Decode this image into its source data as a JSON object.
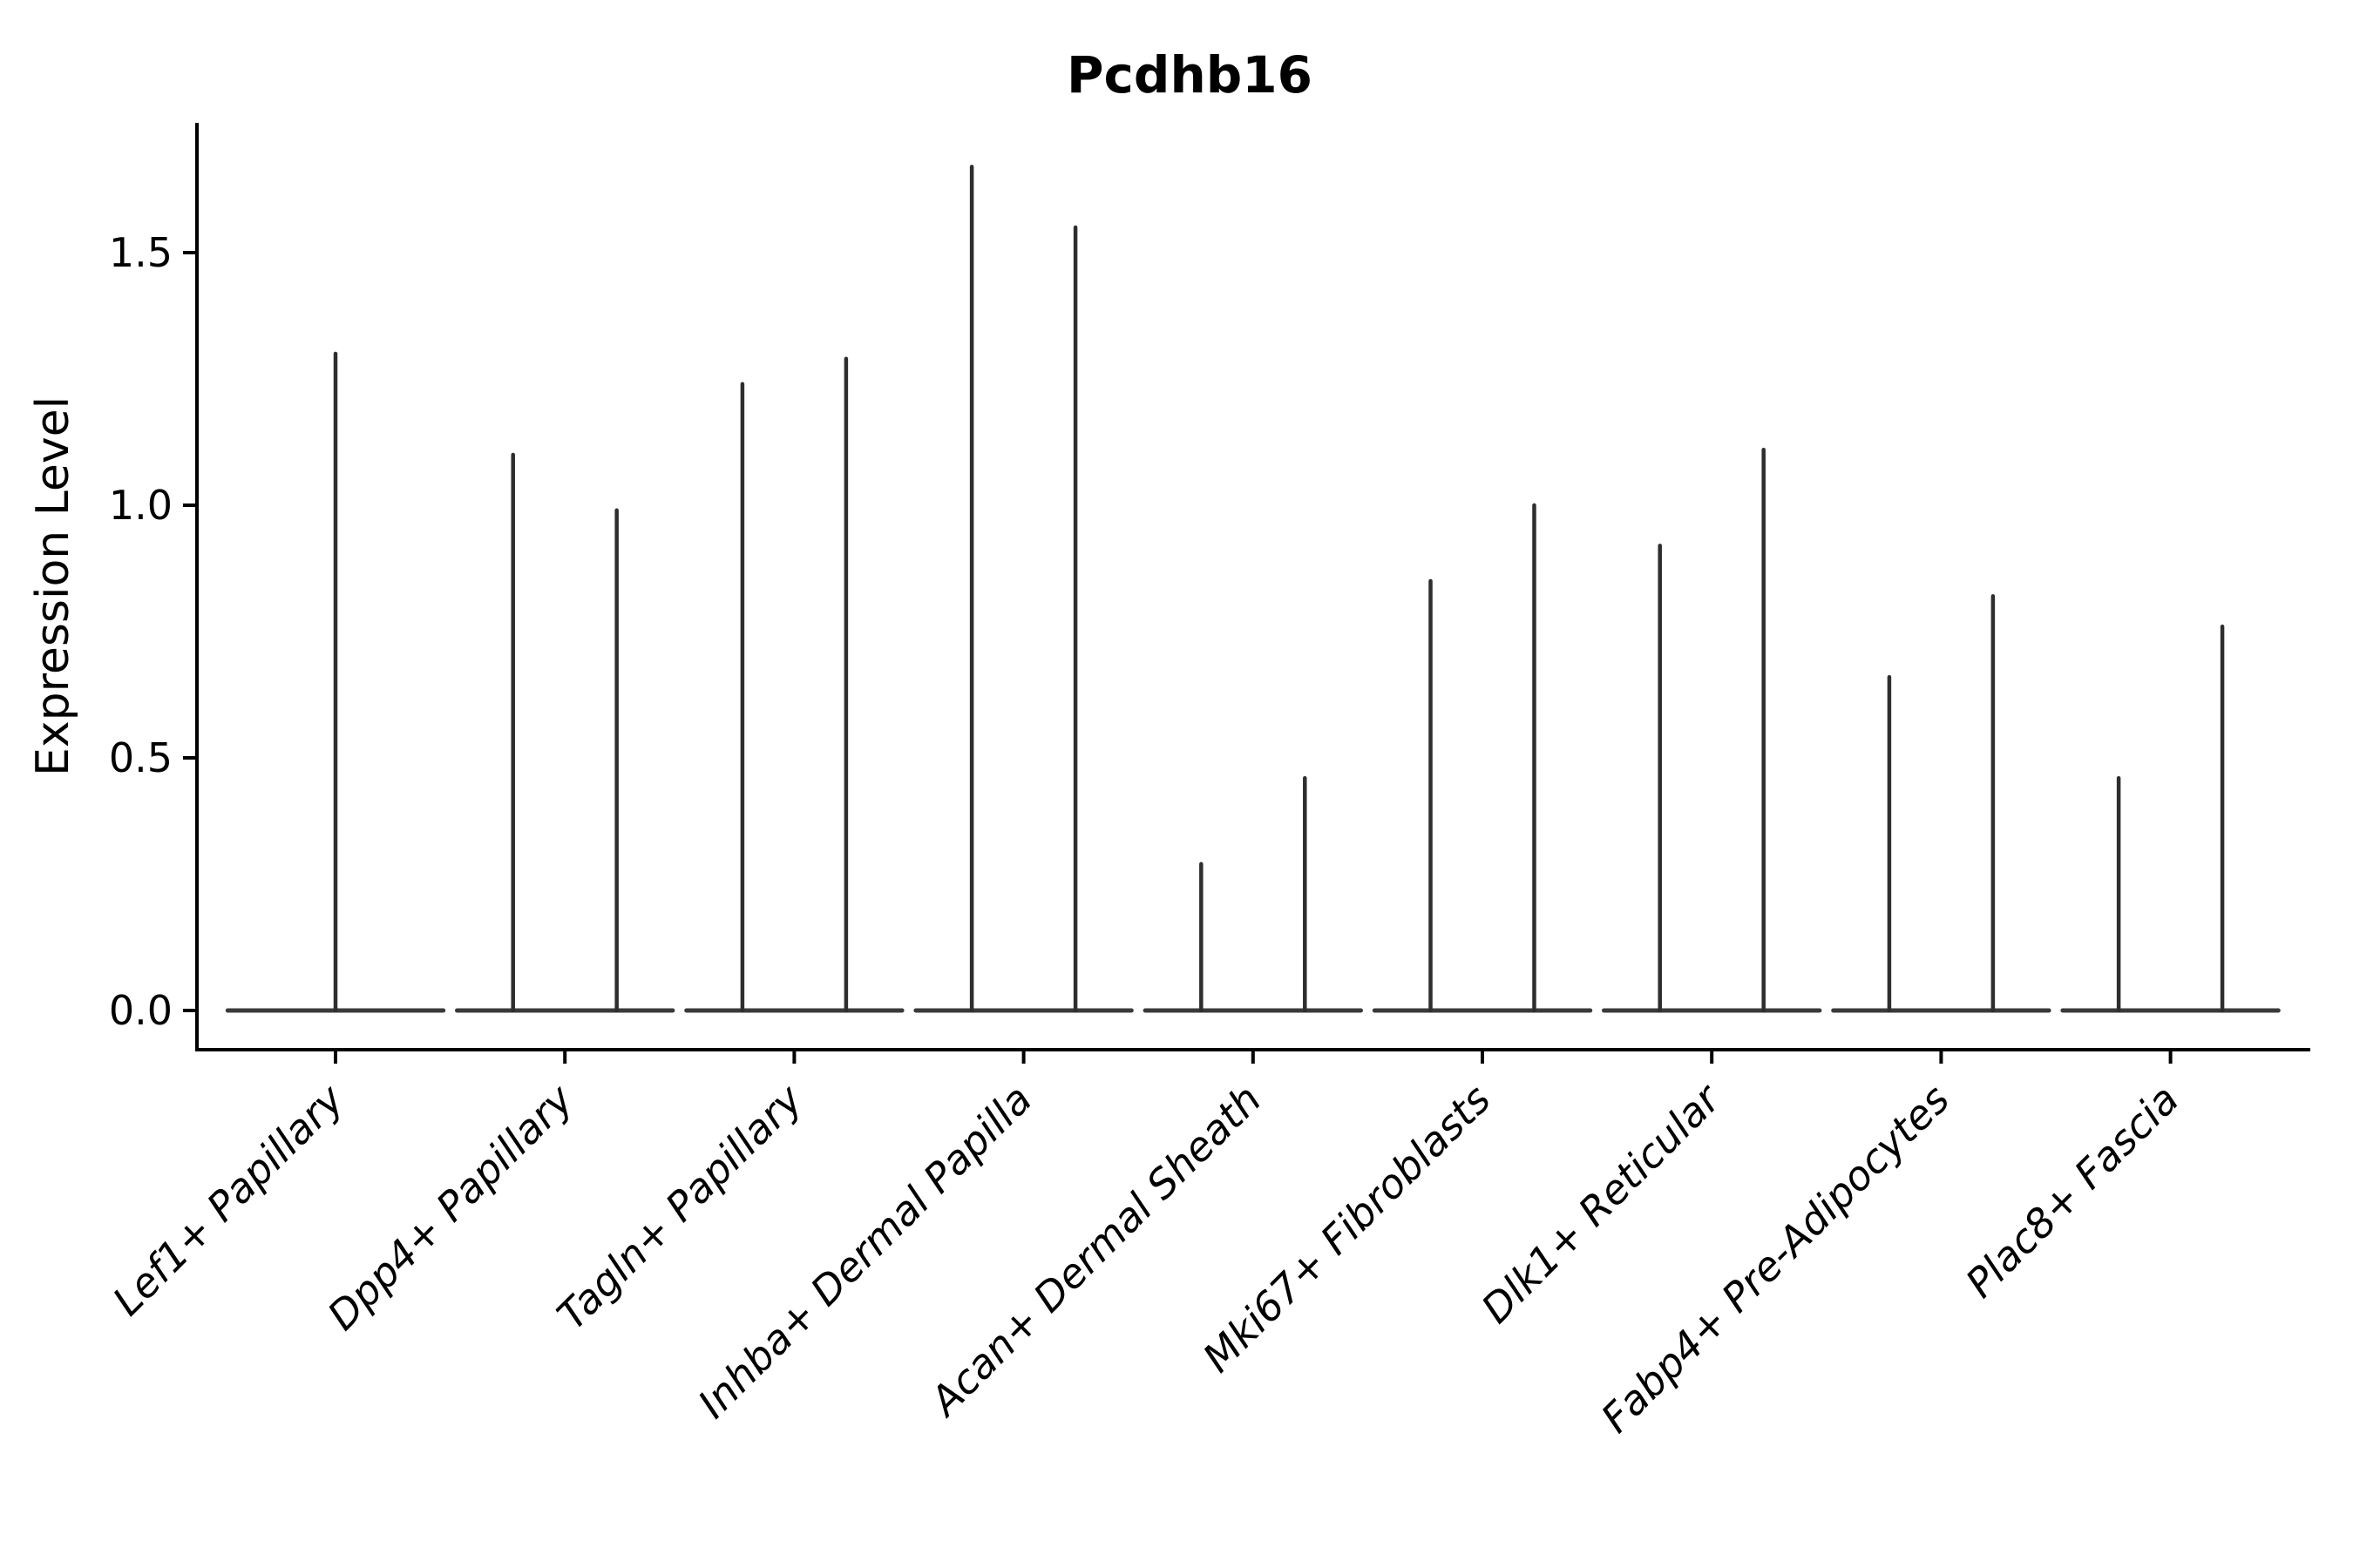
{
  "chart_data": {
    "type": "violin",
    "title": "Pcdhb16",
    "ylabel": "Expression Level",
    "xlabel": "",
    "ylim": [
      -0.08,
      1.76
    ],
    "grid": false,
    "legend": null,
    "y_ticks": [
      {
        "value": 0.0,
        "label": "0.0"
      },
      {
        "value": 0.5,
        "label": "0.5"
      },
      {
        "value": 1.0,
        "label": "1.0"
      },
      {
        "value": 1.5,
        "label": "1.5"
      }
    ],
    "categories": [
      "Lef1+ Papillary",
      "Dpp4+ Papillary",
      "Tagln+ Papillary",
      "Inhba+ Dermal Papilla",
      "Acan+ Dermal Sheath",
      "Mki67+ Fibroblasts",
      "Dlk1+ Reticular",
      "Fabp4+ Pre-Adipocytes",
      "Plac8+ Fascia"
    ],
    "violins": [
      {
        "category": "Lef1+ Papillary",
        "spikes": [
          {
            "offset": 0,
            "max": 1.3
          }
        ]
      },
      {
        "category": "Dpp4+ Papillary",
        "spikes": [
          {
            "offset": -0.226,
            "max": 1.1
          },
          {
            "offset": 0.226,
            "max": 0.99
          }
        ]
      },
      {
        "category": "Tagln+ Papillary",
        "spikes": [
          {
            "offset": -0.226,
            "max": 1.24
          },
          {
            "offset": 0.226,
            "max": 1.29
          }
        ]
      },
      {
        "category": "Inhba+ Dermal Papilla",
        "spikes": [
          {
            "offset": -0.226,
            "max": 1.67
          },
          {
            "offset": 0.226,
            "max": 1.55
          }
        ]
      },
      {
        "category": "Acan+ Dermal Sheath",
        "spikes": [
          {
            "offset": -0.226,
            "max": 0.29
          },
          {
            "offset": 0.226,
            "max": 0.46
          }
        ]
      },
      {
        "category": "Mki67+ Fibroblasts",
        "spikes": [
          {
            "offset": -0.226,
            "max": 0.85
          },
          {
            "offset": 0.226,
            "max": 1.0
          }
        ]
      },
      {
        "category": "Dlk1+ Reticular",
        "spikes": [
          {
            "offset": -0.226,
            "max": 0.92
          },
          {
            "offset": 0.226,
            "max": 1.11
          }
        ]
      },
      {
        "category": "Fabp4+ Pre-Adipocytes",
        "spikes": [
          {
            "offset": -0.226,
            "max": 0.66
          },
          {
            "offset": 0.226,
            "max": 0.82
          }
        ]
      },
      {
        "category": "Plac8+ Fascia",
        "spikes": [
          {
            "offset": -0.226,
            "max": 0.46
          },
          {
            "offset": 0.226,
            "max": 0.76
          }
        ]
      }
    ],
    "baseline_value": 0.0,
    "baseline_halfwidth": 0.47,
    "colors": {
      "axis": "#000000",
      "spike": "#2e2e2e",
      "baseline": "#3a3a3a",
      "text": "#000000",
      "background": "#ffffff"
    }
  }
}
